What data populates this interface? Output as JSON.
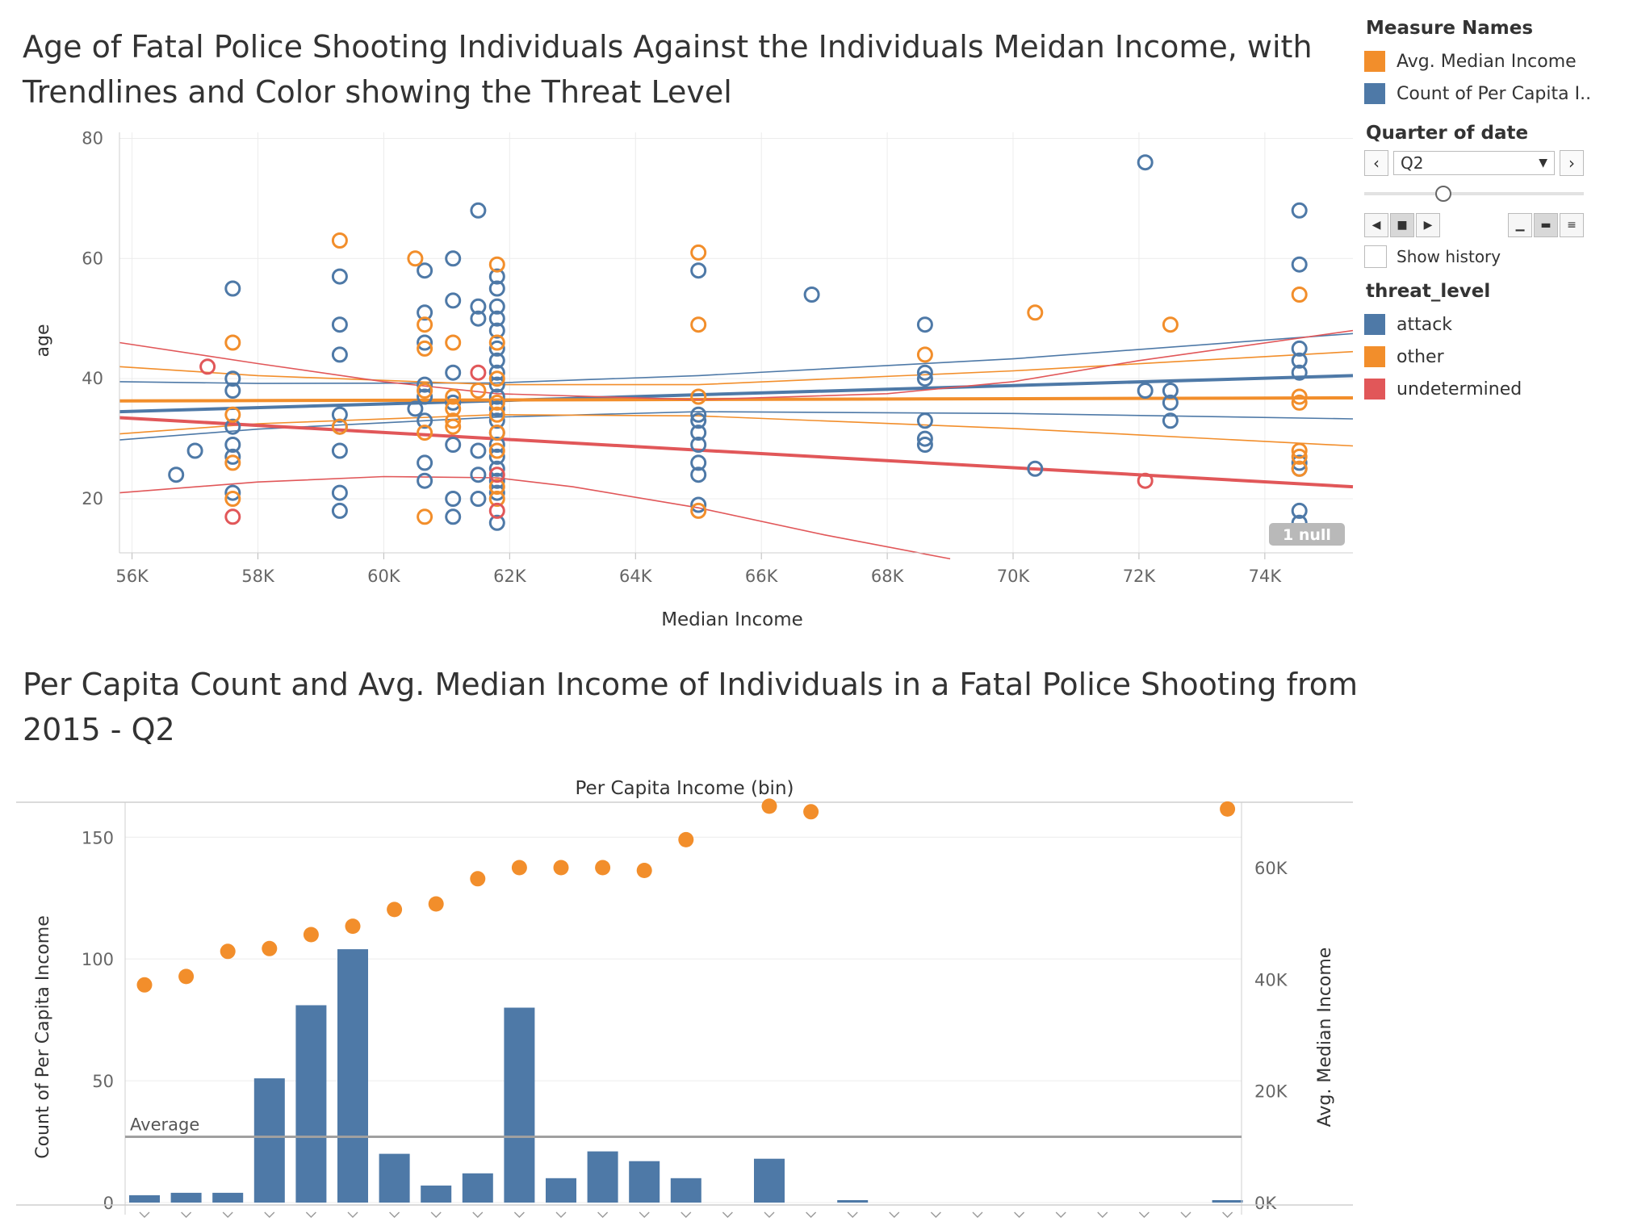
{
  "titles": {
    "top": "Age of Fatal Police Shooting Individuals Against the Individuals Meidan Income, with Trendlines and Color showing the Threat Level",
    "bottom": "Per Capita Count and Avg. Median Income of Individuals in a Fatal Police Shooting from 2015 - Q2"
  },
  "legend": {
    "measure_names": {
      "heading": "Measure Names",
      "items": [
        {
          "label": "Avg. Median Income",
          "color": "#f28e2b"
        },
        {
          "label": "Count of Per Capita I..",
          "color": "#4e79a7"
        }
      ]
    },
    "quarter_filter": {
      "heading": "Quarter of date",
      "value": "Q2",
      "prev_icon": "chevron-left-icon",
      "next_icon": "chevron-right-icon",
      "show_history_label": "Show history"
    },
    "threat_level": {
      "heading": "threat_level",
      "items": [
        {
          "label": "attack",
          "color": "#4e79a7"
        },
        {
          "label": "other",
          "color": "#f28e2b"
        },
        {
          "label": "undetermined",
          "color": "#e15759"
        }
      ]
    }
  },
  "chart_data": [
    {
      "type": "scatter",
      "title": "Age of Fatal Police Shooting Individuals Against the Individuals Meidan Income, with Trendlines and Color showing the Threat Level",
      "xlabel": "Median Income",
      "ylabel": "age",
      "x_ticks": [
        "56K",
        "58K",
        "60K",
        "62K",
        "64K",
        "66K",
        "68K",
        "70K",
        "72K",
        "74K"
      ],
      "y_ticks": [
        "20",
        "40",
        "60",
        "80"
      ],
      "xlim": [
        55800,
        75400
      ],
      "ylim": [
        11,
        81
      ],
      "null_badge": "1 null",
      "series": [
        {
          "name": "attack",
          "color": "#4e79a7",
          "points": [
            [
              56700,
              24
            ],
            [
              57000,
              28
            ],
            [
              57600,
              55
            ],
            [
              57600,
              40
            ],
            [
              57600,
              38
            ],
            [
              57600,
              32
            ],
            [
              57600,
              29
            ],
            [
              57600,
              27
            ],
            [
              57600,
              21
            ],
            [
              59300,
              57
            ],
            [
              59300,
              49
            ],
            [
              59300,
              44
            ],
            [
              59300,
              34
            ],
            [
              59300,
              32
            ],
            [
              59300,
              28
            ],
            [
              59300,
              21
            ],
            [
              59300,
              18
            ],
            [
              60500,
              35
            ],
            [
              60650,
              58
            ],
            [
              60650,
              51
            ],
            [
              60650,
              46
            ],
            [
              60650,
              39
            ],
            [
              60650,
              37
            ],
            [
              60650,
              33
            ],
            [
              60650,
              26
            ],
            [
              60650,
              23
            ],
            [
              61100,
              60
            ],
            [
              61100,
              53
            ],
            [
              61100,
              41
            ],
            [
              61100,
              36
            ],
            [
              61100,
              29
            ],
            [
              61100,
              20
            ],
            [
              61100,
              17
            ],
            [
              61500,
              68
            ],
            [
              61500,
              52
            ],
            [
              61500,
              50
            ],
            [
              61500,
              28
            ],
            [
              61500,
              24
            ],
            [
              61500,
              20
            ],
            [
              61800,
              57
            ],
            [
              61800,
              55
            ],
            [
              61800,
              52
            ],
            [
              61800,
              50
            ],
            [
              61800,
              48
            ],
            [
              61800,
              45
            ],
            [
              61800,
              43
            ],
            [
              61800,
              41
            ],
            [
              61800,
              39
            ],
            [
              61800,
              37
            ],
            [
              61800,
              35
            ],
            [
              61800,
              33
            ],
            [
              61800,
              31
            ],
            [
              61800,
              29
            ],
            [
              61800,
              27
            ],
            [
              61800,
              25
            ],
            [
              61800,
              23
            ],
            [
              61800,
              21
            ],
            [
              61800,
              16
            ],
            [
              65000,
              58
            ],
            [
              65000,
              34
            ],
            [
              65000,
              33
            ],
            [
              65000,
              31
            ],
            [
              65000,
              29
            ],
            [
              65000,
              26
            ],
            [
              65000,
              24
            ],
            [
              65000,
              19
            ],
            [
              66800,
              54
            ],
            [
              68600,
              49
            ],
            [
              68600,
              41
            ],
            [
              68600,
              40
            ],
            [
              68600,
              33
            ],
            [
              68600,
              30
            ],
            [
              68600,
              29
            ],
            [
              70350,
              25
            ],
            [
              72100,
              76
            ],
            [
              72100,
              38
            ],
            [
              72500,
              38
            ],
            [
              72500,
              36
            ],
            [
              72500,
              33
            ],
            [
              74550,
              68
            ],
            [
              74550,
              59
            ],
            [
              74550,
              45
            ],
            [
              74550,
              43
            ],
            [
              74550,
              41
            ],
            [
              74550,
              26
            ],
            [
              74550,
              25
            ],
            [
              74550,
              18
            ],
            [
              74550,
              16
            ]
          ]
        },
        {
          "name": "other",
          "color": "#f28e2b",
          "points": [
            [
              57600,
              46
            ],
            [
              57600,
              34
            ],
            [
              57600,
              26
            ],
            [
              57600,
              20
            ],
            [
              59300,
              63
            ],
            [
              59300,
              32
            ],
            [
              60500,
              60
            ],
            [
              60650,
              49
            ],
            [
              60650,
              45
            ],
            [
              60650,
              38
            ],
            [
              60650,
              31
            ],
            [
              60650,
              17
            ],
            [
              61100,
              46
            ],
            [
              61100,
              37
            ],
            [
              61100,
              35
            ],
            [
              61100,
              33
            ],
            [
              61100,
              32
            ],
            [
              61500,
              38
            ],
            [
              61800,
              59
            ],
            [
              61800,
              46
            ],
            [
              61800,
              40
            ],
            [
              61800,
              36
            ],
            [
              61800,
              34
            ],
            [
              61800,
              31
            ],
            [
              61800,
              28
            ],
            [
              61800,
              22
            ],
            [
              61800,
              20
            ],
            [
              65000,
              61
            ],
            [
              65000,
              49
            ],
            [
              65000,
              37
            ],
            [
              65000,
              18
            ],
            [
              68600,
              44
            ],
            [
              70350,
              51
            ],
            [
              72500,
              49
            ],
            [
              74550,
              54
            ],
            [
              74550,
              37
            ],
            [
              74550,
              36
            ],
            [
              74550,
              28
            ],
            [
              74550,
              27
            ],
            [
              74550,
              25
            ]
          ]
        },
        {
          "name": "undetermined",
          "color": "#e15759",
          "points": [
            [
              57200,
              42
            ],
            [
              57600,
              17
            ],
            [
              61500,
              41
            ],
            [
              61800,
              24
            ],
            [
              61800,
              18
            ],
            [
              72100,
              23
            ]
          ]
        }
      ],
      "trendlines": [
        {
          "series": "attack",
          "kind": "fit",
          "points": [
            [
              55800,
              34.5
            ],
            [
              75400,
              40.5
            ]
          ]
        },
        {
          "series": "attack",
          "kind": "band-upper",
          "points": [
            [
              55800,
              39.5
            ],
            [
              58000,
              39.2
            ],
            [
              61800,
              39.3
            ],
            [
              65000,
              40.5
            ],
            [
              70000,
              43.3
            ],
            [
              75400,
              47.5
            ]
          ]
        },
        {
          "series": "attack",
          "kind": "band-lower",
          "points": [
            [
              55800,
              29.8
            ],
            [
              58000,
              31.6
            ],
            [
              61800,
              33.6
            ],
            [
              65000,
              34.5
            ],
            [
              70000,
              34.2
            ],
            [
              75400,
              33.3
            ]
          ]
        },
        {
          "series": "other",
          "kind": "fit",
          "points": [
            [
              55800,
              36.3
            ],
            [
              75400,
              36.8
            ]
          ]
        },
        {
          "series": "other",
          "kind": "band-upper",
          "points": [
            [
              55800,
              42
            ],
            [
              58000,
              40.5
            ],
            [
              61800,
              39
            ],
            [
              65000,
              39
            ],
            [
              70000,
              41.3
            ],
            [
              75400,
              44.5
            ]
          ]
        },
        {
          "series": "other",
          "kind": "band-lower",
          "points": [
            [
              55800,
              30.8
            ],
            [
              58000,
              32.5
            ],
            [
              61800,
              34
            ],
            [
              65000,
              33.8
            ],
            [
              70000,
              31.7
            ],
            [
              75400,
              28.8
            ]
          ]
        },
        {
          "series": "undetermined",
          "kind": "fit",
          "points": [
            [
              55800,
              33.5
            ],
            [
              75400,
              22
            ]
          ]
        },
        {
          "series": "undetermined",
          "kind": "band-upper",
          "points": [
            [
              55800,
              46
            ],
            [
              58000,
              42.5
            ],
            [
              60000,
              39.5
            ],
            [
              61800,
              37.5
            ],
            [
              65000,
              36.5
            ],
            [
              68000,
              37.5
            ],
            [
              70000,
              39.5
            ],
            [
              72000,
              43
            ],
            [
              75400,
              48
            ]
          ]
        },
        {
          "series": "undetermined",
          "kind": "band-lower",
          "points": [
            [
              55800,
              21
            ],
            [
              58000,
              22.8
            ],
            [
              60000,
              23.7
            ],
            [
              61800,
              23.5
            ],
            [
              63000,
              22
            ],
            [
              65000,
              18.5
            ],
            [
              67000,
              14
            ],
            [
              69000,
              10
            ]
          ]
        }
      ]
    },
    {
      "type": "bar",
      "title": "Per Capita Count and Avg. Median Income of Individuals in a Fatal Police Shooting from 2015 - Q2",
      "xlabel": "Per Capita Income (bin)",
      "ylabel": "Count of Per Capita Income",
      "y2label": "Avg. Median Income",
      "y_ticks": [
        "0",
        "50",
        "100",
        "150"
      ],
      "y2_ticks": [
        "0K",
        "20K",
        "40K",
        "60K"
      ],
      "ylim": [
        0,
        165
      ],
      "y2lim": [
        0,
        72000
      ],
      "reference_line": {
        "label": "Average",
        "value": 27
      },
      "bin_count": 27,
      "series": [
        {
          "name": "Count of Per Capita I..",
          "color": "#4e79a7",
          "kind": "bar",
          "values": [
            3,
            4,
            4,
            51,
            81,
            104,
            20,
            7,
            12,
            80,
            10,
            21,
            17,
            10,
            null,
            18,
            null,
            1,
            null,
            null,
            null,
            null,
            null,
            null,
            null,
            null,
            1
          ]
        },
        {
          "name": "Avg. Median Income",
          "color": "#f28e2b",
          "kind": "dot",
          "values": [
            39000,
            40500,
            45000,
            45500,
            48000,
            49500,
            52500,
            53500,
            58000,
            60000,
            60000,
            60000,
            59500,
            65000,
            null,
            71000,
            70000,
            null,
            null,
            null,
            null,
            null,
            null,
            null,
            null,
            null,
            70500
          ]
        }
      ]
    }
  ]
}
